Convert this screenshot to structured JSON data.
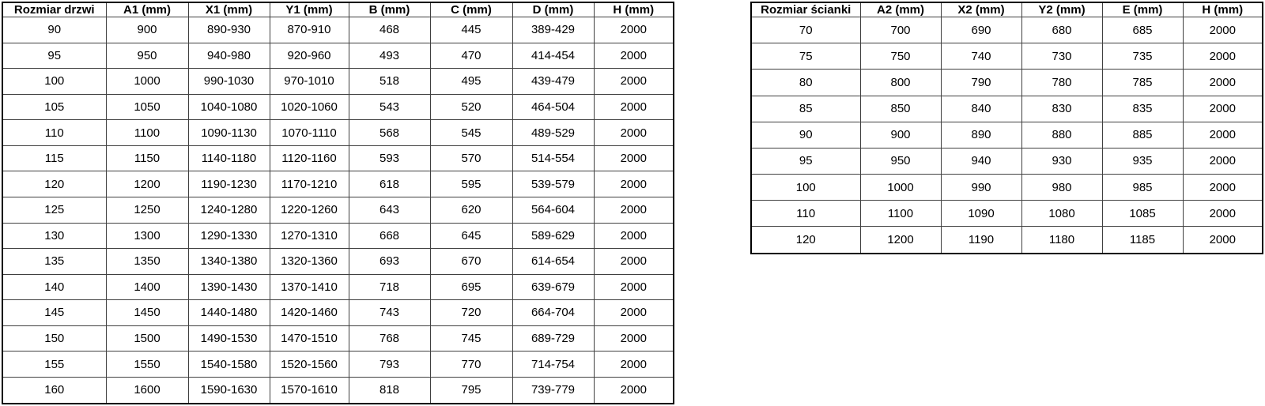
{
  "doors_table": {
    "headers": [
      "Rozmiar drzwi",
      "A1 (mm)",
      "X1 (mm)",
      "Y1 (mm)",
      "B (mm)",
      "C (mm)",
      "D (mm)",
      "H (mm)"
    ],
    "rows": [
      [
        "90",
        "900",
        "890-930",
        "870-910",
        "468",
        "445",
        "389-429",
        "2000"
      ],
      [
        "95",
        "950",
        "940-980",
        "920-960",
        "493",
        "470",
        "414-454",
        "2000"
      ],
      [
        "100",
        "1000",
        "990-1030",
        "970-1010",
        "518",
        "495",
        "439-479",
        "2000"
      ],
      [
        "105",
        "1050",
        "1040-1080",
        "1020-1060",
        "543",
        "520",
        "464-504",
        "2000"
      ],
      [
        "110",
        "1100",
        "1090-1130",
        "1070-1110",
        "568",
        "545",
        "489-529",
        "2000"
      ],
      [
        "115",
        "1150",
        "1140-1180",
        "1120-1160",
        "593",
        "570",
        "514-554",
        "2000"
      ],
      [
        "120",
        "1200",
        "1190-1230",
        "1170-1210",
        "618",
        "595",
        "539-579",
        "2000"
      ],
      [
        "125",
        "1250",
        "1240-1280",
        "1220-1260",
        "643",
        "620",
        "564-604",
        "2000"
      ],
      [
        "130",
        "1300",
        "1290-1330",
        "1270-1310",
        "668",
        "645",
        "589-629",
        "2000"
      ],
      [
        "135",
        "1350",
        "1340-1380",
        "1320-1360",
        "693",
        "670",
        "614-654",
        "2000"
      ],
      [
        "140",
        "1400",
        "1390-1430",
        "1370-1410",
        "718",
        "695",
        "639-679",
        "2000"
      ],
      [
        "145",
        "1450",
        "1440-1480",
        "1420-1460",
        "743",
        "720",
        "664-704",
        "2000"
      ],
      [
        "150",
        "1500",
        "1490-1530",
        "1470-1510",
        "768",
        "745",
        "689-729",
        "2000"
      ],
      [
        "155",
        "1550",
        "1540-1580",
        "1520-1560",
        "793",
        "770",
        "714-754",
        "2000"
      ],
      [
        "160",
        "1600",
        "1590-1630",
        "1570-1610",
        "818",
        "795",
        "739-779",
        "2000"
      ]
    ]
  },
  "walls_table": {
    "headers": [
      "Rozmiar ścianki",
      "A2 (mm)",
      "X2 (mm)",
      "Y2 (mm)",
      "E (mm)",
      "H (mm)"
    ],
    "rows": [
      [
        "70",
        "700",
        "690",
        "680",
        "685",
        "2000"
      ],
      [
        "75",
        "750",
        "740",
        "730",
        "735",
        "2000"
      ],
      [
        "80",
        "800",
        "790",
        "780",
        "785",
        "2000"
      ],
      [
        "85",
        "850",
        "840",
        "830",
        "835",
        "2000"
      ],
      [
        "90",
        "900",
        "890",
        "880",
        "885",
        "2000"
      ],
      [
        "95",
        "950",
        "940",
        "930",
        "935",
        "2000"
      ],
      [
        "100",
        "1000",
        "990",
        "980",
        "985",
        "2000"
      ],
      [
        "110",
        "1100",
        "1090",
        "1080",
        "1085",
        "2000"
      ],
      [
        "120",
        "1200",
        "1190",
        "1180",
        "1185",
        "2000"
      ]
    ]
  },
  "colors": {
    "background": "#ffffff",
    "text": "#000000",
    "border_outer": "#000000",
    "border_inner": "#404040"
  }
}
